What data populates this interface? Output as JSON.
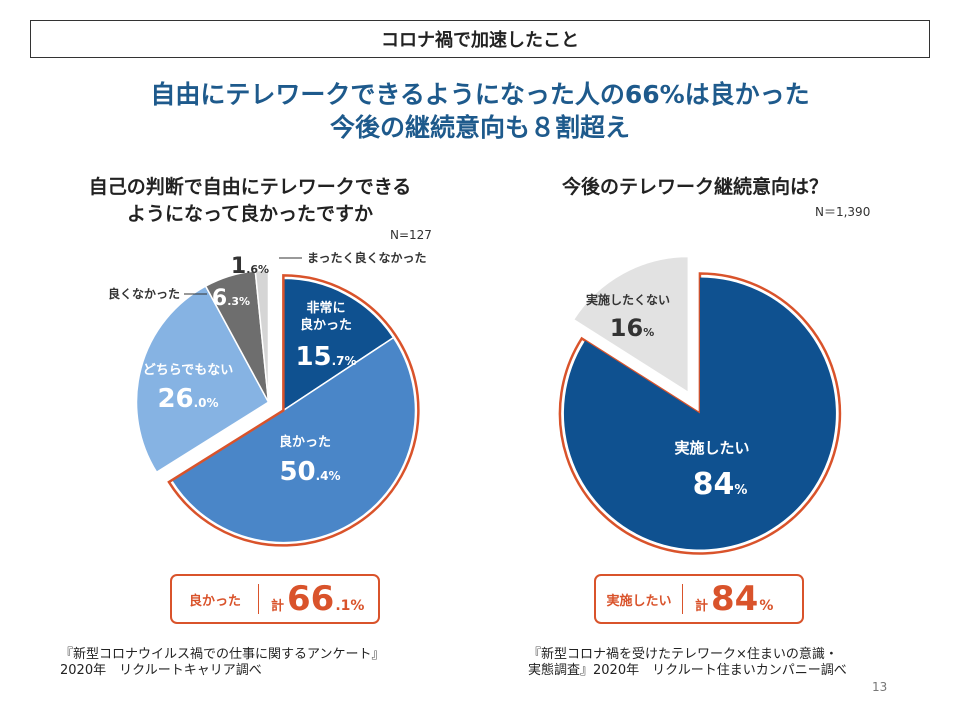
{
  "banner": "コロナ禍で加速したこと",
  "headline": {
    "line1": "自由にテレワークできるようになった人の66%は良かった",
    "line2": "今後の継続意向も８割超え"
  },
  "chart_data": [
    {
      "type": "pie",
      "title_line1": "自己の判断で自由にテレワークできる",
      "title_line2": "ようになって良かったですか",
      "n_label": "N=127",
      "slices": [
        {
          "label": "非常に良かった",
          "label_lines": [
            "非常に",
            "良かった"
          ],
          "value": 15.7,
          "value_int": "15",
          "value_dec": ".7%",
          "color": "#0f5190"
        },
        {
          "label": "良かった",
          "label_lines": [
            "良かった"
          ],
          "value": 50.4,
          "value_int": "50",
          "value_dec": ".4%",
          "color": "#4a86c8"
        },
        {
          "label": "どちらでもない",
          "label_lines": [
            "どちらでもない"
          ],
          "value": 26.0,
          "value_int": "26",
          "value_dec": ".0%",
          "color": "#86b3e3"
        },
        {
          "label": "良くなかった",
          "label_lines": [
            "良くなかった"
          ],
          "value": 6.3,
          "value_int": "6",
          "value_dec": ".3%",
          "color": "#6e6e6e"
        },
        {
          "label": "まったく良くなかった",
          "label_lines": [
            "まったく良くなかった"
          ],
          "value": 1.6,
          "value_int": "1",
          "value_dec": ".6%",
          "color": "#d5d5d5"
        }
      ],
      "summary": {
        "label": "良かった",
        "kei": "計",
        "value": 66.1,
        "int": "66",
        "dec": ".1%"
      },
      "source_lines": [
        "『新型コロナウイルス禍での仕事に関するアンケート』",
        "2020年　リクルートキャリア調べ"
      ]
    },
    {
      "type": "pie",
      "title": "今後のテレワーク継続意向は？",
      "n_label": "N＝1,390",
      "slices": [
        {
          "label": "実施したい",
          "value": 84,
          "value_int": "84",
          "value_dec": "%",
          "color": "#0f5190"
        },
        {
          "label": "実施したくない",
          "value": 16,
          "value_int": "16",
          "value_dec": "%",
          "color": "#e2e2e2"
        }
      ],
      "summary": {
        "label": "実施したい",
        "kei": "計",
        "value": 84,
        "int": "84",
        "dec": "%"
      },
      "source_lines": [
        "『新型コロナ禍を受けたテレワーク×住まいの意識・",
        "実態調査』2020年　リクルート住まいカンパニー調べ"
      ]
    }
  ],
  "page_number": "13",
  "colors": {
    "accent_orange": "#d9532b",
    "headline_blue": "#1e5a8c"
  }
}
